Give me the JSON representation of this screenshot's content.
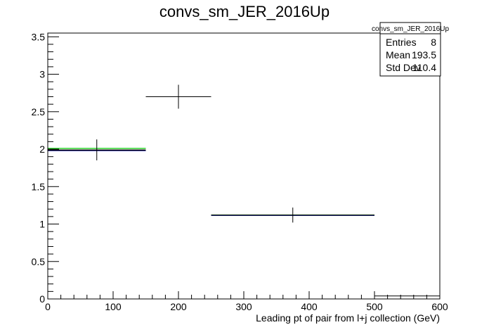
{
  "chart_data": {
    "type": "histogram",
    "title": "convs_sm_JER_2016Up",
    "xlabel": "Leading pt of pair from l+j collection (GeV)",
    "ylabel": "",
    "xlim": [
      0,
      600
    ],
    "ylim": [
      0,
      3.55
    ],
    "xticks": [
      "0",
      "100",
      "200",
      "300",
      "400",
      "500",
      "600"
    ],
    "yticks": [
      "0",
      "0.5",
      "1",
      "1.5",
      "2",
      "2.5",
      "3",
      "3.5"
    ],
    "bins": [
      {
        "xlo": 0,
        "xhi": 150,
        "content": 1.99,
        "error": 0.14
      },
      {
        "xlo": 150,
        "xhi": 250,
        "content": 2.7,
        "error": 0.16
      },
      {
        "xlo": 250,
        "xhi": 500,
        "content": 1.12,
        "error": 0.1
      },
      {
        "xlo": 500,
        "xhi": 600,
        "content": 0.04,
        "error": 0.0
      }
    ],
    "series": [
      {
        "style": "errorbars",
        "color": "#000000",
        "bins": [
          [
            0,
            150,
            1.99,
            0.14
          ],
          [
            150,
            250,
            2.7,
            0.16
          ],
          [
            250,
            500,
            1.12,
            0.1
          ],
          [
            500,
            600,
            0.04,
            0
          ]
        ]
      },
      {
        "style": "line",
        "color": "#00cc00",
        "bins": [
          [
            0,
            150,
            2.01
          ],
          [
            250,
            500,
            1.12
          ]
        ]
      },
      {
        "style": "line",
        "color": "#0000cc",
        "bins": [
          [
            0,
            150,
            1.98
          ],
          [
            250,
            500,
            1.115
          ]
        ]
      },
      {
        "style": "line",
        "color": "#000000",
        "bins": [
          [
            0,
            150,
            1.985
          ],
          [
            250,
            500,
            1.118
          ]
        ]
      }
    ],
    "stats": {
      "name": "convs_sm_JER_2016Up",
      "rows": [
        {
          "label": "Entries",
          "value": "8"
        },
        {
          "label": "Mean",
          "value": "193.5"
        },
        {
          "label": "Std Dev",
          "value": "110.4"
        }
      ]
    }
  }
}
